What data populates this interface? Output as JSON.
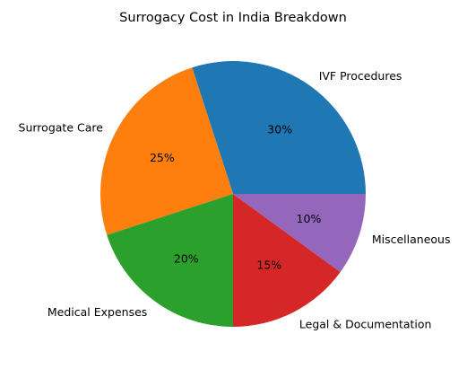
{
  "chart_data": {
    "type": "pie",
    "title": "Surrogacy Cost in India Breakdown",
    "categories": [
      "IVF Procedures",
      "Surrogate Care",
      "Medical Expenses",
      "Legal & Documentation",
      "Miscellaneous"
    ],
    "values": [
      30,
      25,
      20,
      15,
      10
    ],
    "value_labels": [
      "30%",
      "25%",
      "20%",
      "15%",
      "10%"
    ],
    "colors": [
      "#1f77b4",
      "#ff7f0e",
      "#2ca02c",
      "#d62728",
      "#9467bd"
    ],
    "start_angle_deg": 0,
    "direction": "counterclockwise"
  }
}
